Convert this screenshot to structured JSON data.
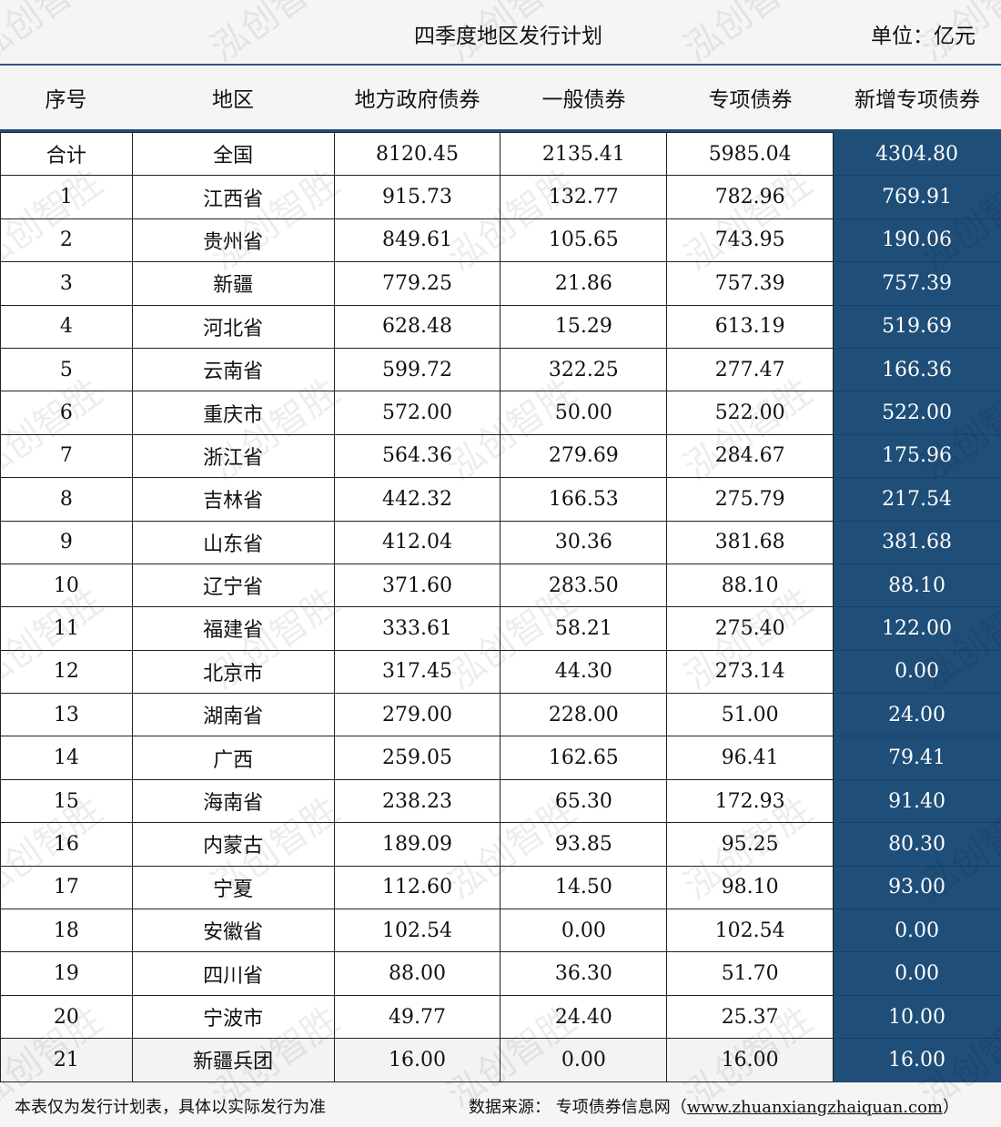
{
  "title": "四季度地区发行计划",
  "unit": "单位：亿元",
  "headers": [
    "序号",
    "地区",
    "地方政府债券",
    "一般债券",
    "专项债券",
    "新增专项债券"
  ],
  "rows": [
    [
      "合计",
      "全国",
      "8120.45",
      "2135.41",
      "5985.04",
      "4304.80"
    ],
    [
      "1",
      "江西省",
      "915.73",
      "132.77",
      "782.96",
      "769.91"
    ],
    [
      "2",
      "贵州省",
      "849.61",
      "105.65",
      "743.95",
      "190.06"
    ],
    [
      "3",
      "新疆",
      "779.25",
      "21.86",
      "757.39",
      "757.39"
    ],
    [
      "4",
      "河北省",
      "628.48",
      "15.29",
      "613.19",
      "519.69"
    ],
    [
      "5",
      "云南省",
      "599.72",
      "322.25",
      "277.47",
      "166.36"
    ],
    [
      "6",
      "重庆市",
      "572.00",
      "50.00",
      "522.00",
      "522.00"
    ],
    [
      "7",
      "浙江省",
      "564.36",
      "279.69",
      "284.67",
      "175.96"
    ],
    [
      "8",
      "吉林省",
      "442.32",
      "166.53",
      "275.79",
      "217.54"
    ],
    [
      "9",
      "山东省",
      "412.04",
      "30.36",
      "381.68",
      "381.68"
    ],
    [
      "10",
      "辽宁省",
      "371.60",
      "283.50",
      "88.10",
      "88.10"
    ],
    [
      "11",
      "福建省",
      "333.61",
      "58.21",
      "275.40",
      "122.00"
    ],
    [
      "12",
      "北京市",
      "317.45",
      "44.30",
      "273.14",
      "0.00"
    ],
    [
      "13",
      "湖南省",
      "279.00",
      "228.00",
      "51.00",
      "24.00"
    ],
    [
      "14",
      "广西",
      "259.05",
      "162.65",
      "96.41",
      "79.41"
    ],
    [
      "15",
      "海南省",
      "238.23",
      "65.30",
      "172.93",
      "91.40"
    ],
    [
      "16",
      "内蒙古",
      "189.09",
      "93.85",
      "95.25",
      "80.30"
    ],
    [
      "17",
      "宁夏",
      "112.60",
      "14.50",
      "98.10",
      "93.00"
    ],
    [
      "18",
      "安徽省",
      "102.54",
      "0.00",
      "102.54",
      "0.00"
    ],
    [
      "19",
      "四川省",
      "88.00",
      "36.30",
      "51.70",
      "0.00"
    ],
    [
      "20",
      "宁波市",
      "49.77",
      "24.40",
      "25.37",
      "10.00"
    ],
    [
      "21",
      "新疆兵团",
      "16.00",
      "0.00",
      "16.00",
      "16.00"
    ]
  ],
  "footer": {
    "note": "本表仅为发行计划表，具体以实际发行为准",
    "source_label": "数据来源： 专项债券信息网（",
    "source_url": "www.zhuanxiangzhaiquan.com",
    "source_close": "）"
  },
  "watermark": "泓创智胜",
  "colors": {
    "accent": "#1f4e79",
    "header_line": "#2f5a86"
  }
}
